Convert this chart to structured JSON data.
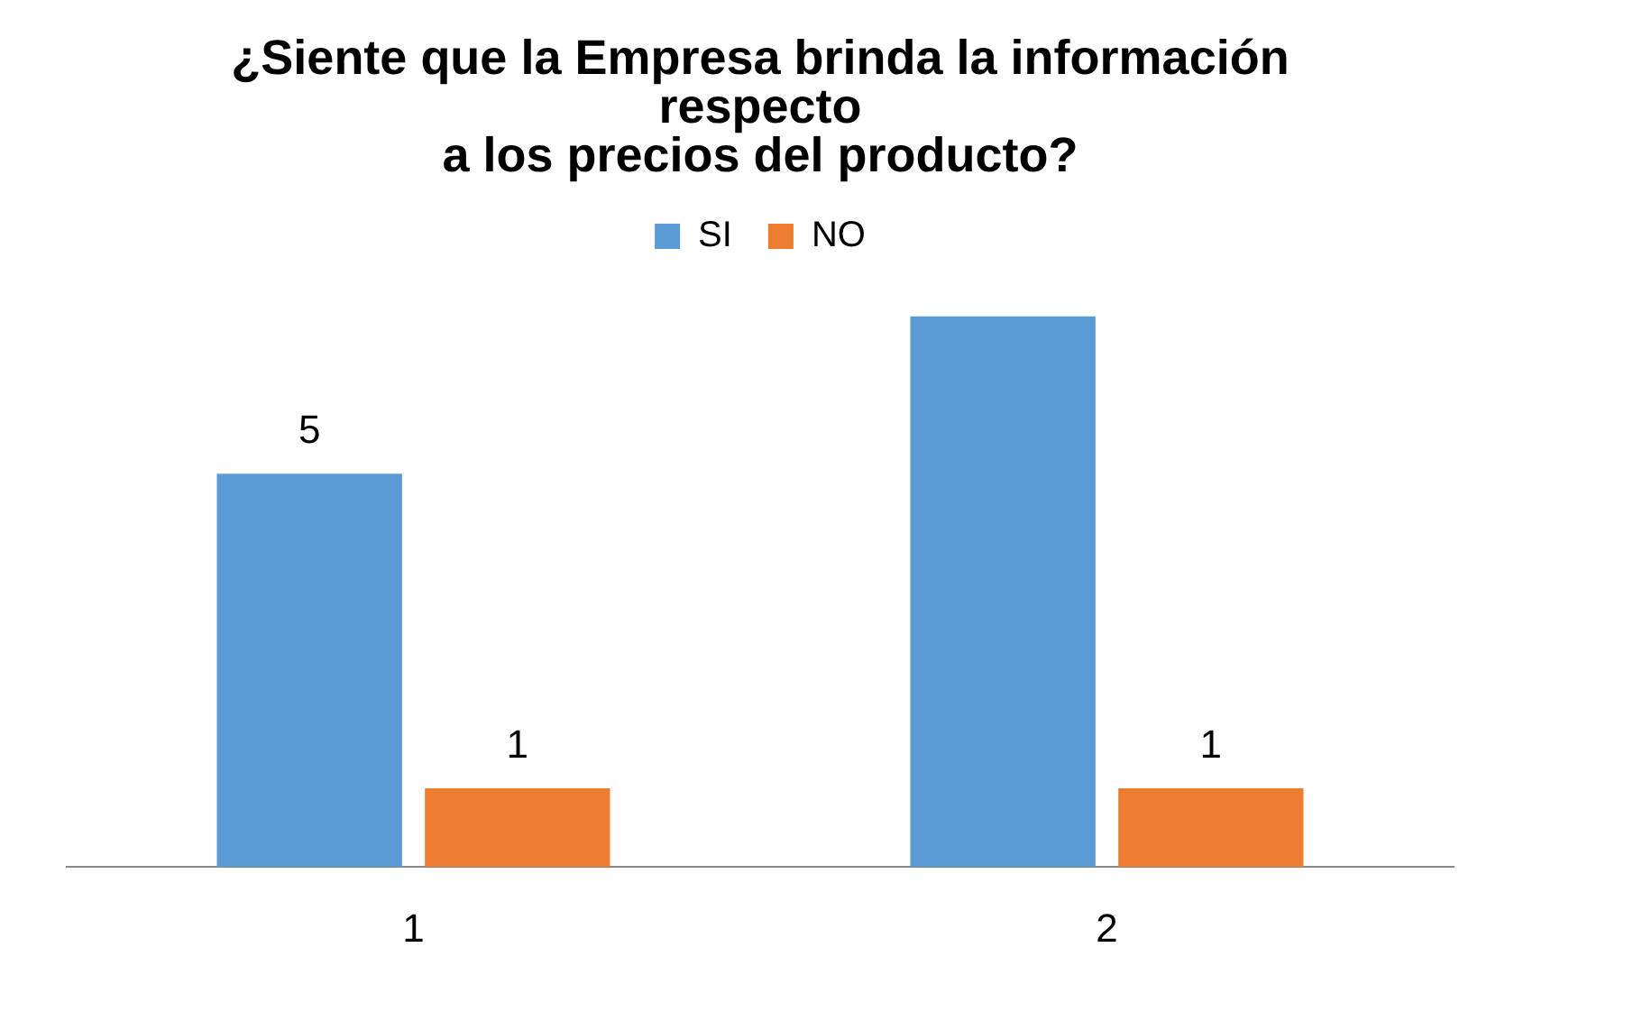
{
  "chart_data": {
    "type": "bar",
    "title": "¿Siente que la Empresa brinda la información\nrespecto\na los precios del producto?",
    "categories": [
      "1",
      "2"
    ],
    "series": [
      {
        "name": "SI",
        "color": "#5b9bd5",
        "values": [
          5,
          7
        ],
        "value_labels": [
          "5",
          null
        ]
      },
      {
        "name": "NO",
        "color": "#ed7d31",
        "values": [
          1,
          1
        ],
        "value_labels": [
          "1",
          "1"
        ]
      }
    ],
    "legend": "top",
    "grid": false
  }
}
